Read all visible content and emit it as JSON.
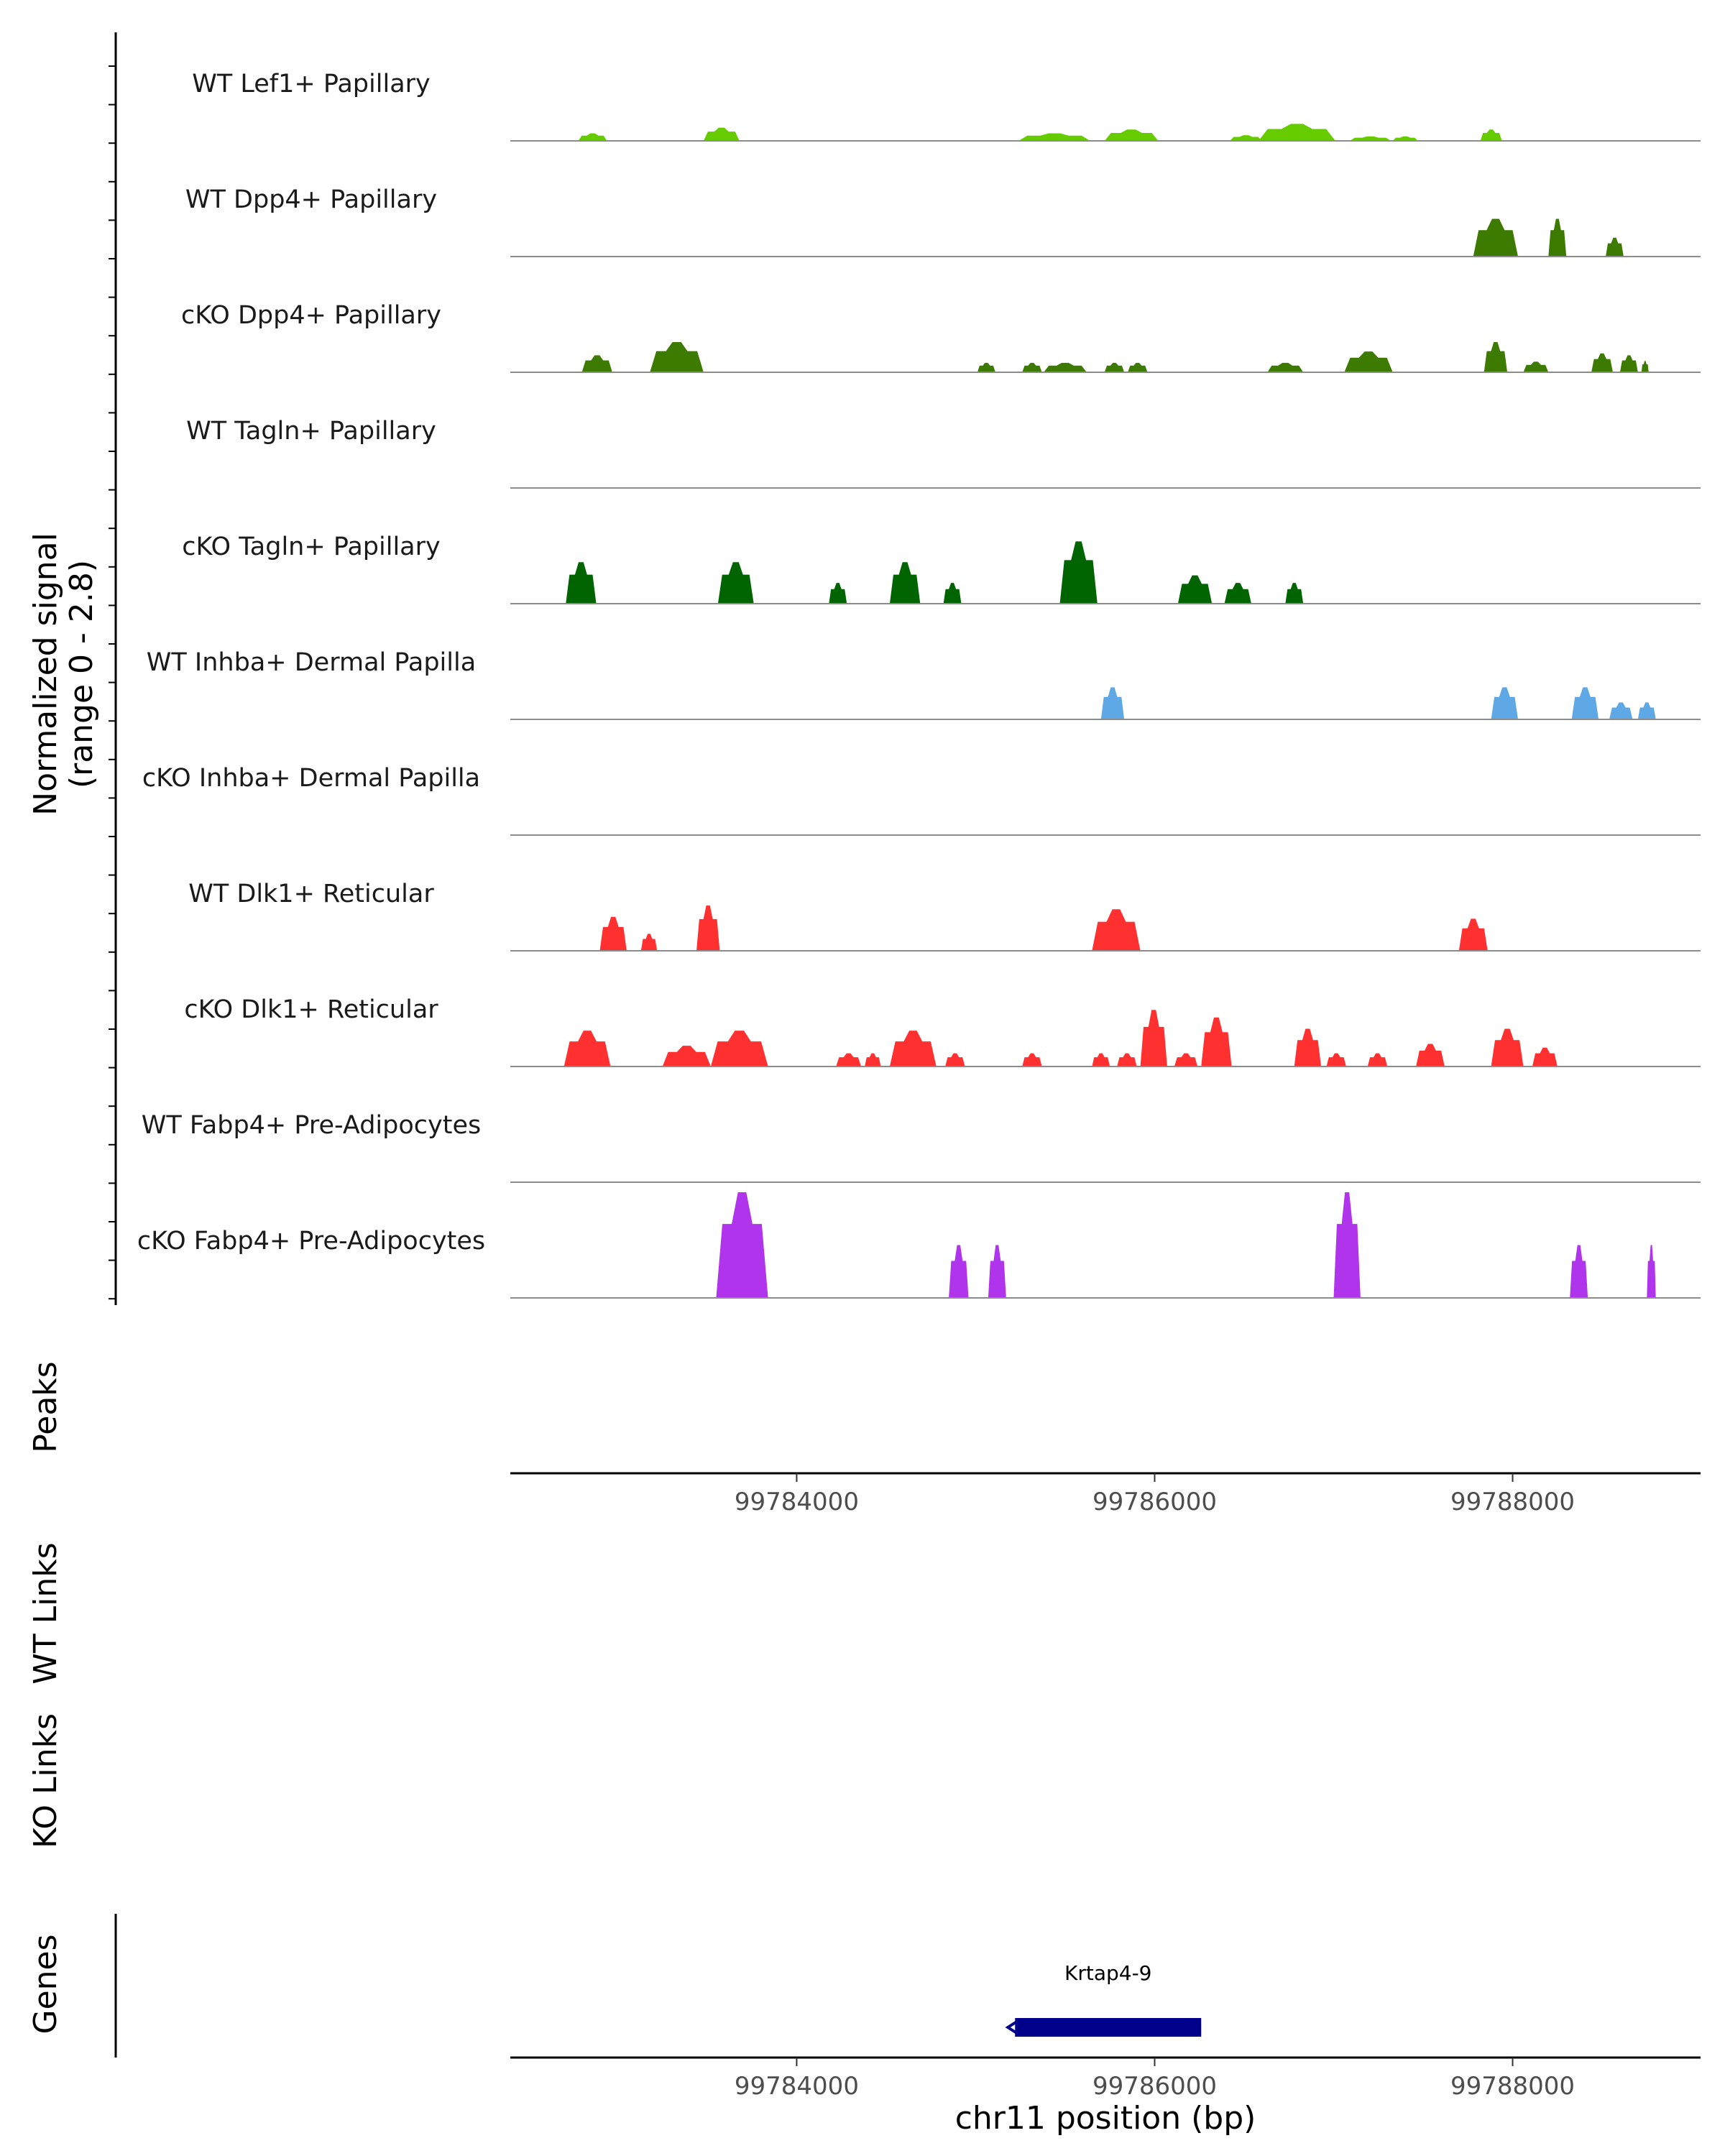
{
  "chart_data": {
    "type": "area",
    "title": "",
    "xlabel": "chr11 position (bp)",
    "ylabel": "Normalized signal",
    "ylabel_range": "(range 0 - 2.8)",
    "ylim": [
      0,
      2.8
    ],
    "xlim": [
      99782400,
      99789050
    ],
    "x_ticks": [
      99784000,
      99786000,
      99788000
    ],
    "x_tick_labels": [
      "99784000",
      "99786000",
      "99788000"
    ],
    "panel_labels": {
      "peaks": "Peaks",
      "wt_links": "WT Links",
      "ko_links": "KO Links",
      "genes": "Genes"
    },
    "tracks": [
      {
        "name": "WT Lef1+ Papillary",
        "color": "#66cc00",
        "peaks": [
          [
            99782780,
            99782940,
            0.2
          ],
          [
            99783480,
            99783680,
            0.35
          ],
          [
            99785240,
            99785640,
            0.2
          ],
          [
            99785720,
            99786020,
            0.3
          ],
          [
            99786420,
            99786600,
            0.15
          ],
          [
            99786580,
            99787010,
            0.45
          ],
          [
            99787090,
            99787320,
            0.12
          ],
          [
            99787330,
            99787470,
            0.12
          ],
          [
            99787820,
            99787940,
            0.3
          ]
        ]
      },
      {
        "name": "WT Dpp4+ Papillary",
        "color": "#3c7a00",
        "peaks": [
          [
            99787780,
            99788030,
            1.0
          ],
          [
            99788200,
            99788300,
            1.0
          ],
          [
            99788520,
            99788620,
            0.5
          ]
        ]
      },
      {
        "name": "cKO Dpp4+ Papillary",
        "color": "#3c7a00",
        "peaks": [
          [
            99782800,
            99782970,
            0.45
          ],
          [
            99783180,
            99783480,
            0.8
          ],
          [
            99785010,
            99785110,
            0.25
          ],
          [
            99785260,
            99785370,
            0.25
          ],
          [
            99785380,
            99785620,
            0.25
          ],
          [
            99785720,
            99785830,
            0.25
          ],
          [
            99785850,
            99785960,
            0.25
          ],
          [
            99786630,
            99786830,
            0.25
          ],
          [
            99787060,
            99787330,
            0.55
          ],
          [
            99787840,
            99787970,
            0.8
          ],
          [
            99788060,
            99788200,
            0.28
          ],
          [
            99788440,
            99788560,
            0.5
          ],
          [
            99788600,
            99788700,
            0.45
          ],
          [
            99788720,
            99788760,
            0.3
          ]
        ]
      },
      {
        "name": "WT Tagln+ Papillary",
        "color": "#006400",
        "peaks": []
      },
      {
        "name": "cKO Tagln+ Papillary",
        "color": "#006400",
        "peaks": [
          [
            99782710,
            99782880,
            1.1
          ],
          [
            99783560,
            99783760,
            1.1
          ],
          [
            99784180,
            99784280,
            0.55
          ],
          [
            99784520,
            99784690,
            1.1
          ],
          [
            99784820,
            99784920,
            0.55
          ],
          [
            99785470,
            99785680,
            1.65
          ],
          [
            99786130,
            99786320,
            0.75
          ],
          [
            99786390,
            99786540,
            0.55
          ],
          [
            99786730,
            99786830,
            0.55
          ]
        ]
      },
      {
        "name": "WT Inhba+ Dermal Papilla",
        "color": "#5ea8e6",
        "peaks": [
          [
            99785700,
            99785830,
            0.85
          ],
          [
            99787880,
            99788030,
            0.85
          ],
          [
            99788330,
            99788480,
            0.85
          ],
          [
            99788540,
            99788670,
            0.45
          ],
          [
            99788700,
            99788800,
            0.45
          ]
        ]
      },
      {
        "name": "cKO Inhba+ Dermal Papilla",
        "color": "#5ea8e6",
        "peaks": []
      },
      {
        "name": "WT Dlk1+ Reticular",
        "color": "#ff3030",
        "peaks": [
          [
            99782900,
            99783050,
            0.9
          ],
          [
            99783130,
            99783220,
            0.45
          ],
          [
            99783440,
            99783570,
            1.2
          ],
          [
            99785650,
            99785920,
            1.1
          ],
          [
            99787700,
            99787860,
            0.85
          ]
        ]
      },
      {
        "name": "cKO Dlk1+ Reticular",
        "color": "#ff3030",
        "peaks": [
          [
            99782700,
            99782960,
            0.95
          ],
          [
            99783250,
            99783520,
            0.55
          ],
          [
            99783520,
            99783840,
            0.95
          ],
          [
            99784220,
            99784360,
            0.35
          ],
          [
            99784380,
            99784470,
            0.35
          ],
          [
            99784520,
            99784780,
            0.95
          ],
          [
            99784830,
            99784940,
            0.35
          ],
          [
            99785260,
            99785370,
            0.35
          ],
          [
            99785650,
            99785750,
            0.35
          ],
          [
            99785790,
            99785900,
            0.35
          ],
          [
            99785920,
            99786070,
            1.5
          ],
          [
            99786110,
            99786240,
            0.35
          ],
          [
            99786260,
            99786430,
            1.3
          ],
          [
            99786780,
            99786930,
            1.0
          ],
          [
            99786960,
            99787070,
            0.35
          ],
          [
            99787190,
            99787300,
            0.35
          ],
          [
            99787460,
            99787620,
            0.6
          ],
          [
            99787880,
            99788060,
            1.0
          ],
          [
            99788110,
            99788250,
            0.5
          ]
        ]
      },
      {
        "name": "WT Fabp4+ Pre-Adipocytes",
        "color": "#b034eb",
        "peaks": []
      },
      {
        "name": "cKO Fabp4+ Pre-Adipocytes",
        "color": "#b034eb",
        "peaks": [
          [
            99783550,
            99783840,
            2.8
          ],
          [
            99784850,
            99784960,
            1.4
          ],
          [
            99785070,
            99785170,
            1.4
          ],
          [
            99787000,
            99787150,
            2.8
          ],
          [
            99788320,
            99788420,
            1.4
          ],
          [
            99788750,
            99788800,
            1.4
          ]
        ]
      }
    ],
    "genes": [
      {
        "name": "Krtap4-9",
        "start": 99785220,
        "end": 99786260,
        "strand": "-",
        "color": "#00008b"
      }
    ]
  }
}
